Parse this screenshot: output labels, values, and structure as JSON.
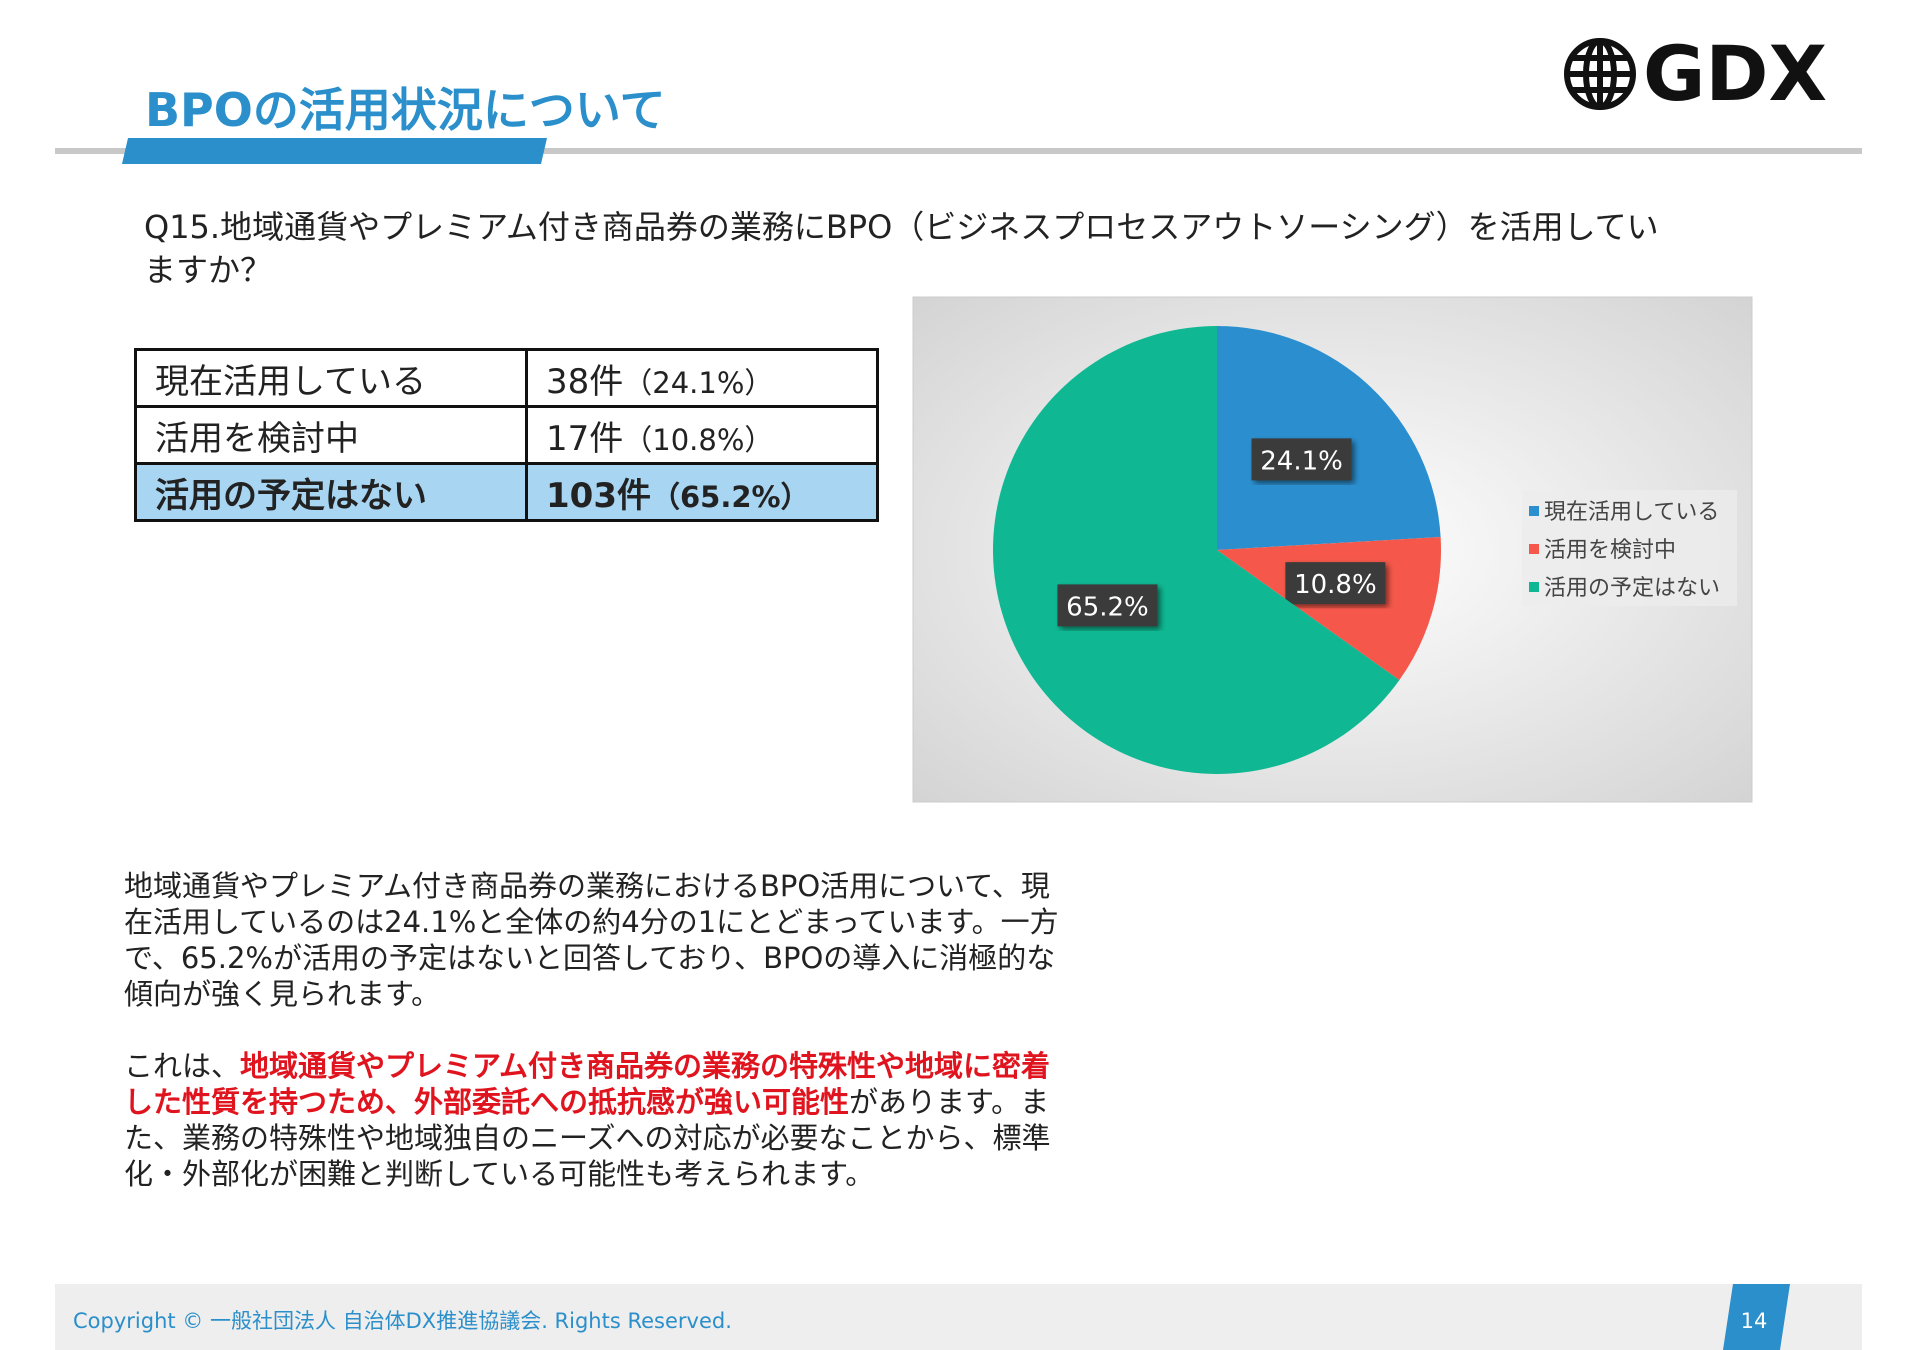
{
  "header": {
    "title": "BPOの活用状況について",
    "logo": "GDX"
  },
  "question": [
    "Q15.地域通貨やプレミアム付き商品券の業務にBPO（ビジネスプロセスアウトソーシング）を活用してい",
    "ますか？"
  ],
  "table": {
    "rows": [
      [
        "現在活用している",
        "38件",
        "（24.1%）"
      ],
      [
        "活用を検討中",
        "17件",
        "（10.8%）"
      ],
      [
        "活用の予定はない",
        "103件",
        "（65.2%）"
      ]
    ]
  },
  "chart_data": {
    "type": "pie",
    "categories": [
      "現在活用している",
      "活用を検討中",
      "活用の予定はない"
    ],
    "values": [
      24.1,
      10.8,
      65.2
    ],
    "value_labels": [
      "24.1%",
      "10.8%",
      "65.2%"
    ],
    "colors": [
      "#2b8fcf",
      "#f5584a",
      "#0fb893"
    ],
    "legend": "right"
  },
  "body": {
    "paragraphs": [
      [
        {
          "text": "地域通貨やプレミアム付き商品券の業務におけるBPO活用について、現在活用しているのは24.1%と全体の約4分の1にとどまっています。一方で、65.2%が活用の予定はないと回答しており、BPOの導入に消極的な傾向が強く見られます。",
          "emphasis": false
        }
      ],
      [
        {
          "text": "これは、",
          "emphasis": false
        },
        {
          "text": "地域通貨やプレミアム付き商品券の業務の特殊性や地域に密着した性質を持つため、外部委託への抵抗感が強い可能性",
          "emphasis": true
        },
        {
          "text": "があります。また、業務の特殊性や地域独自のニーズへの対応が必要なことから、標準化・外部化が困難と判断している可能性も考えられます。",
          "emphasis": false
        }
      ]
    ]
  },
  "footer": {
    "copyright": "Copyright © 一般社団法人 自治体DX推進協議会. Rights Reserved.",
    "page": "14"
  }
}
